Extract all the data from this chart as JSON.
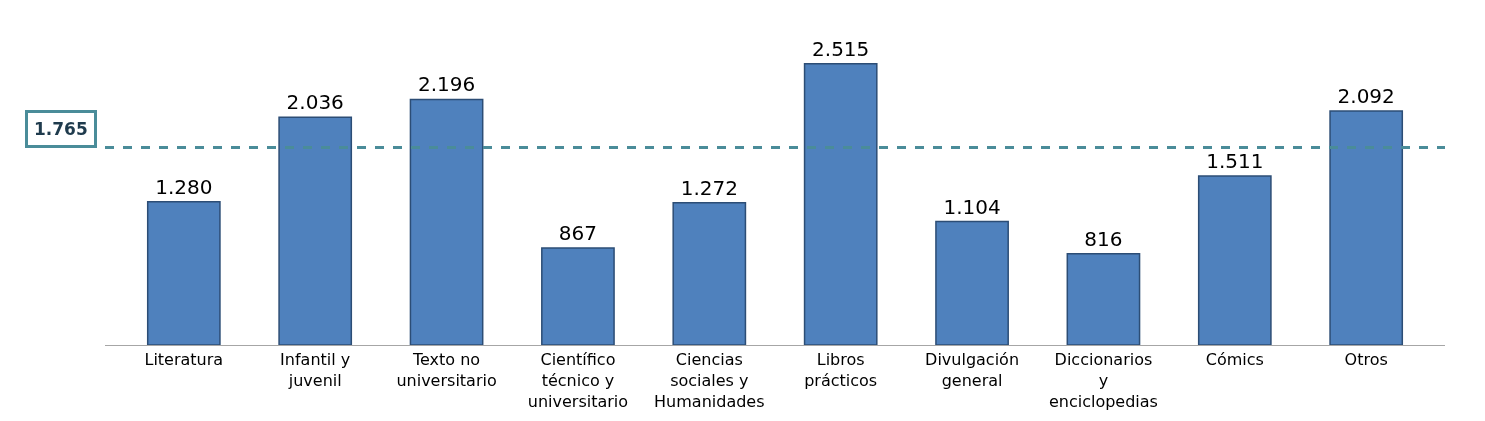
{
  "chart_data": {
    "type": "bar",
    "categories": [
      "Literatura",
      "Infantil y juvenil",
      "Texto no universitario",
      "Científico técnico y universitario",
      "Ciencias sociales y Humanidades",
      "Libros prácticos",
      "Divulgación general",
      "Diccionarios y enciclopedias",
      "Cómics",
      "Otros"
    ],
    "values": [
      1280,
      2036,
      2196,
      867,
      1272,
      2515,
      1104,
      816,
      1511,
      2092
    ],
    "value_labels": [
      "1.280",
      "2.036",
      "2.196",
      "867",
      "1.272",
      "2.515",
      "1.104",
      "816",
      "1.511",
      "2.092"
    ],
    "color": "#4f81bd",
    "ref_lines": [
      {
        "axis": "y",
        "value": 1765,
        "label": "1.765",
        "color": "#4a8c99",
        "line_style": "dashed"
      }
    ],
    "legend": false
  }
}
